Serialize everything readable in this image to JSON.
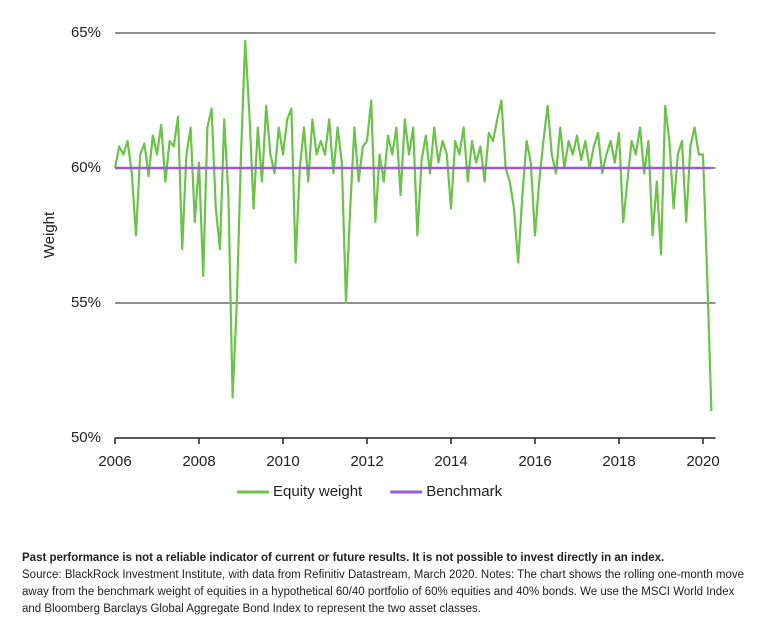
{
  "chart_data": {
    "type": "line",
    "y_label": "Weight",
    "x": [
      2006,
      2006.1,
      2006.2,
      2006.3,
      2006.4,
      2006.5,
      2006.6,
      2006.7,
      2006.8,
      2006.9,
      2007,
      2007.1,
      2007.2,
      2007.3,
      2007.4,
      2007.5,
      2007.6,
      2007.7,
      2007.8,
      2007.9,
      2008,
      2008.1,
      2008.2,
      2008.3,
      2008.4,
      2008.5,
      2008.6,
      2008.7,
      2008.8,
      2008.9,
      2009,
      2009.1,
      2009.2,
      2009.3,
      2009.4,
      2009.5,
      2009.6,
      2009.7,
      2009.8,
      2009.9,
      2010,
      2010.1,
      2010.2,
      2010.3,
      2010.4,
      2010.5,
      2010.6,
      2010.7,
      2010.8,
      2010.9,
      2011,
      2011.1,
      2011.2,
      2011.3,
      2011.4,
      2011.5,
      2011.6,
      2011.7,
      2011.8,
      2011.9,
      2012,
      2012.1,
      2012.2,
      2012.3,
      2012.4,
      2012.5,
      2012.6,
      2012.7,
      2012.8,
      2012.9,
      2013,
      2013.1,
      2013.2,
      2013.3,
      2013.4,
      2013.5,
      2013.6,
      2013.7,
      2013.8,
      2013.9,
      2014,
      2014.1,
      2014.2,
      2014.3,
      2014.4,
      2014.5,
      2014.6,
      2014.7,
      2014.8,
      2014.9,
      2015,
      2015.1,
      2015.2,
      2015.3,
      2015.4,
      2015.5,
      2015.6,
      2015.7,
      2015.8,
      2015.9,
      2016,
      2016.1,
      2016.2,
      2016.3,
      2016.4,
      2016.5,
      2016.6,
      2016.7,
      2016.8,
      2016.9,
      2017,
      2017.1,
      2017.2,
      2017.3,
      2017.4,
      2017.5,
      2017.6,
      2017.7,
      2017.8,
      2017.9,
      2018,
      2018.1,
      2018.2,
      2018.3,
      2018.4,
      2018.5,
      2018.6,
      2018.7,
      2018.8,
      2018.9,
      2019,
      2019.1,
      2019.2,
      2019.3,
      2019.4,
      2019.5,
      2019.6,
      2019.7,
      2019.8,
      2019.9,
      2020,
      2020.1,
      2020.2
    ],
    "series": [
      {
        "name": "Equity weight",
        "color": "#6cc24a",
        "values": [
          60,
          60.8,
          60.5,
          61,
          59.8,
          57.5,
          60.5,
          60.9,
          59.7,
          61.2,
          60.5,
          61.6,
          59.5,
          61,
          60.8,
          61.9,
          57,
          60.5,
          61.5,
          58,
          60.2,
          56,
          61.5,
          62.2,
          58.5,
          57,
          61.8,
          59,
          51.5,
          55,
          60.5,
          64.7,
          62,
          58.5,
          61.5,
          59.5,
          62.3,
          60.5,
          59.8,
          61.5,
          60.5,
          61.8,
          62.2,
          56.5,
          60,
          61.5,
          59.5,
          61.8,
          60.5,
          61,
          60.5,
          61.8,
          59.8,
          61.5,
          60.2,
          55,
          58.5,
          61.5,
          59.5,
          60.8,
          61,
          62.5,
          58,
          60.5,
          59.5,
          61.2,
          60.5,
          61.5,
          59,
          61.8,
          60.5,
          61.5,
          57.5,
          60.3,
          61.2,
          59.8,
          61.5,
          60.2,
          61,
          60.5,
          58.5,
          61,
          60.5,
          61.5,
          59.5,
          61,
          60.2,
          60.8,
          59.5,
          61.3,
          61,
          61.8,
          62.5,
          60,
          59.5,
          58.5,
          56.5,
          59,
          61,
          60.2,
          57.5,
          59.5,
          61,
          62.3,
          60.5,
          59.8,
          61.5,
          60,
          61,
          60.5,
          61.2,
          60.3,
          61,
          60,
          60.8,
          61.3,
          59.8,
          60.5,
          61,
          60.2,
          61.3,
          58,
          59.5,
          61,
          60.5,
          61.5,
          59.8,
          61,
          57.5,
          59.5,
          56.8,
          62.3,
          61,
          58.5,
          60.5,
          61,
          58,
          60.8,
          61.5,
          60.5,
          60.5,
          56,
          51
        ]
      },
      {
        "name": "Benchmark",
        "color": "#9b59d0",
        "x": [
          2006,
          2020.2
        ],
        "values": [
          60,
          60
        ]
      }
    ],
    "xlim": [
      2006,
      2020.3
    ],
    "xticks": [
      2006,
      2008,
      2010,
      2012,
      2014,
      2016,
      2018,
      2020
    ],
    "ylim": [
      50,
      65
    ],
    "yticks": [
      {
        "value": 50,
        "label": "50%"
      },
      {
        "value": 55,
        "label": "55%"
      },
      {
        "value": 60,
        "label": "60%"
      },
      {
        "value": 65,
        "label": "65%"
      }
    ],
    "grid": true,
    "note_bold": "Past performance is not a reliable indicator of current or future results. It is not possible to invest directly in an index.",
    "note": "Source: BlackRock Investment Institute, with data from Refinitiv Datastream, March 2020. Notes: The chart shows the rolling one-month move away from the benchmark weight of equities in a hypothetical 60/40 portfolio of 60% equities and 40% bonds. We use the MSCI World Index and Bloomberg Barclays Global Aggregate Bond Index to represent the two asset classes."
  }
}
